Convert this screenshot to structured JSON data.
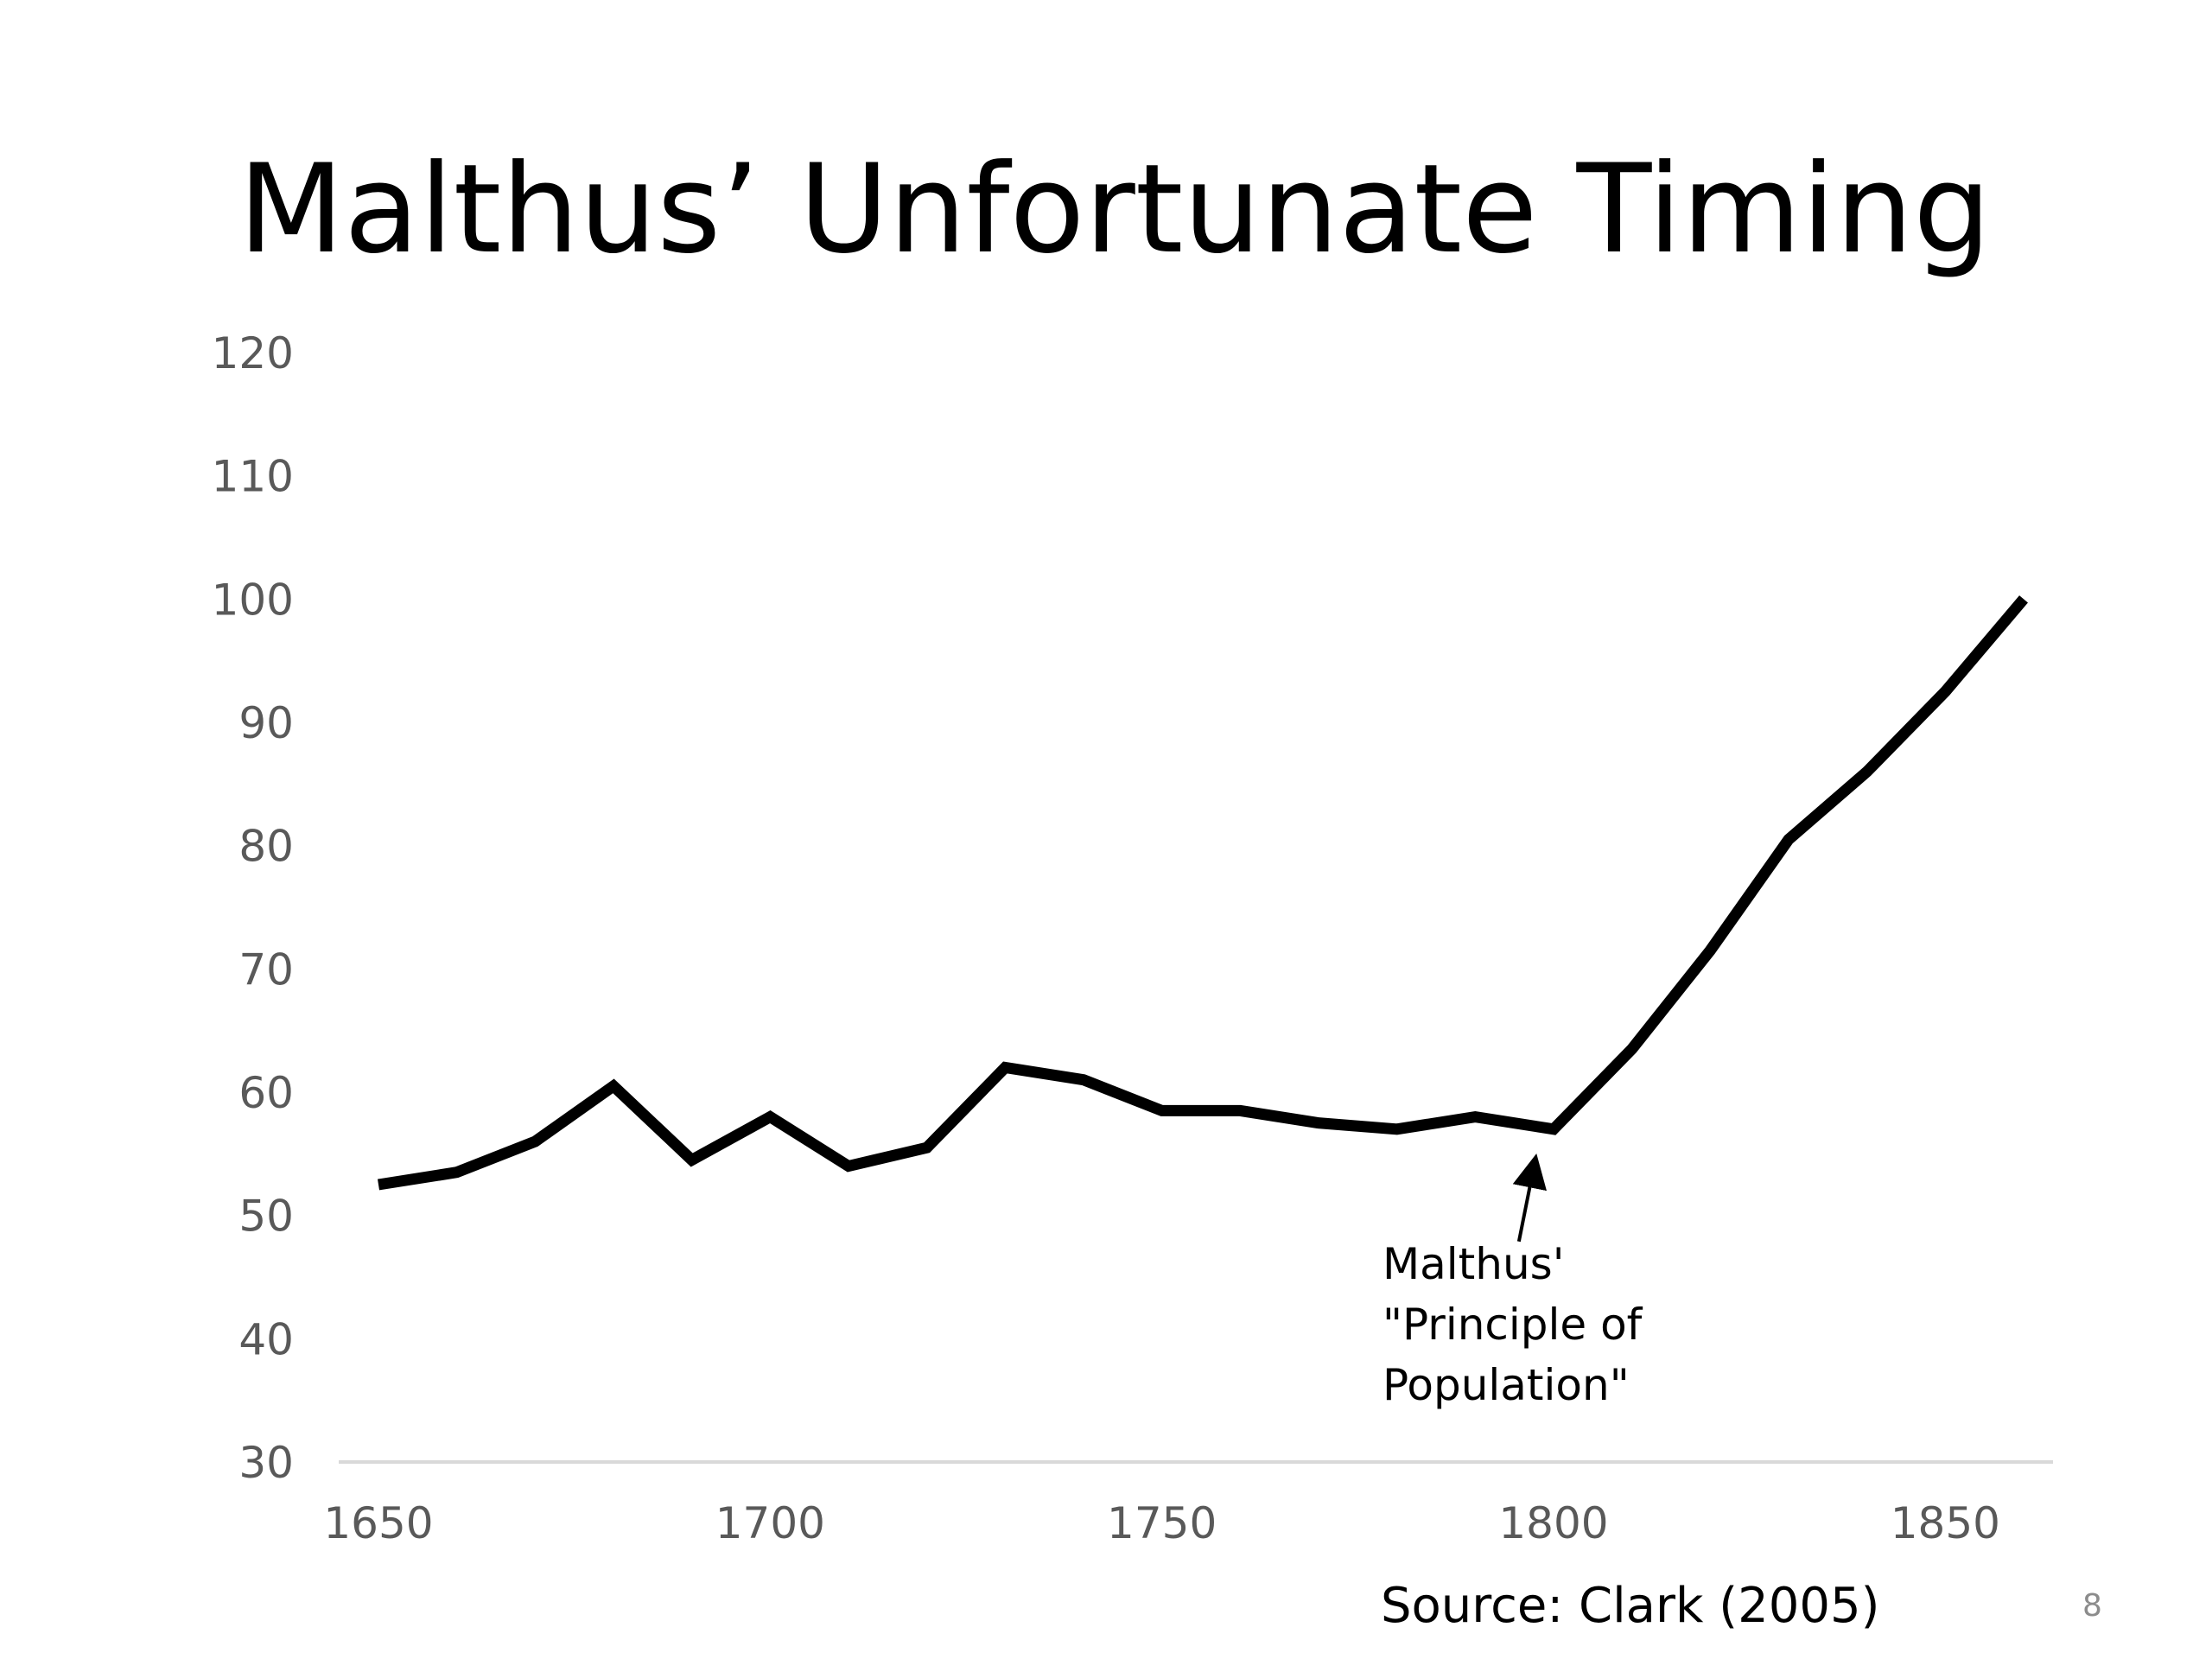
{
  "slide": {
    "title": "Malthus’ Unfortunate Timing",
    "source": "Source: Clark (2005)",
    "page_number": "8"
  },
  "chart_data": {
    "type": "line",
    "title": "",
    "xlabel": "",
    "ylabel": "",
    "xlim": [
      1650,
      1860
    ],
    "ylim": [
      30,
      120
    ],
    "x_ticks": [
      1650,
      1700,
      1750,
      1800,
      1850
    ],
    "y_ticks": [
      30,
      40,
      50,
      60,
      70,
      80,
      90,
      100,
      110,
      120
    ],
    "grid": false,
    "legend": "none",
    "colors": {
      "line": "#000000",
      "axis": "#d9d9d9",
      "tick_text": "#595959"
    },
    "series": [
      {
        "x": [
          1650,
          1660,
          1670,
          1680,
          1690,
          1700,
          1710,
          1720,
          1730,
          1740,
          1750,
          1760,
          1770,
          1780,
          1790,
          1800,
          1810,
          1820,
          1830,
          1840,
          1850,
          1860
        ],
        "values": [
          52.5,
          53.5,
          56,
          60.5,
          54.5,
          58,
          54,
          55.5,
          62,
          61,
          58.5,
          58.5,
          57.5,
          57,
          58,
          57,
          63.5,
          71.5,
          80.5,
          86,
          92.5,
          100
        ]
      }
    ],
    "annotations": [
      {
        "lines": [
          "Malthus'",
          "\"Principle of",
          "Population\""
        ],
        "target_x": 1798,
        "target_y": 57
      }
    ]
  }
}
